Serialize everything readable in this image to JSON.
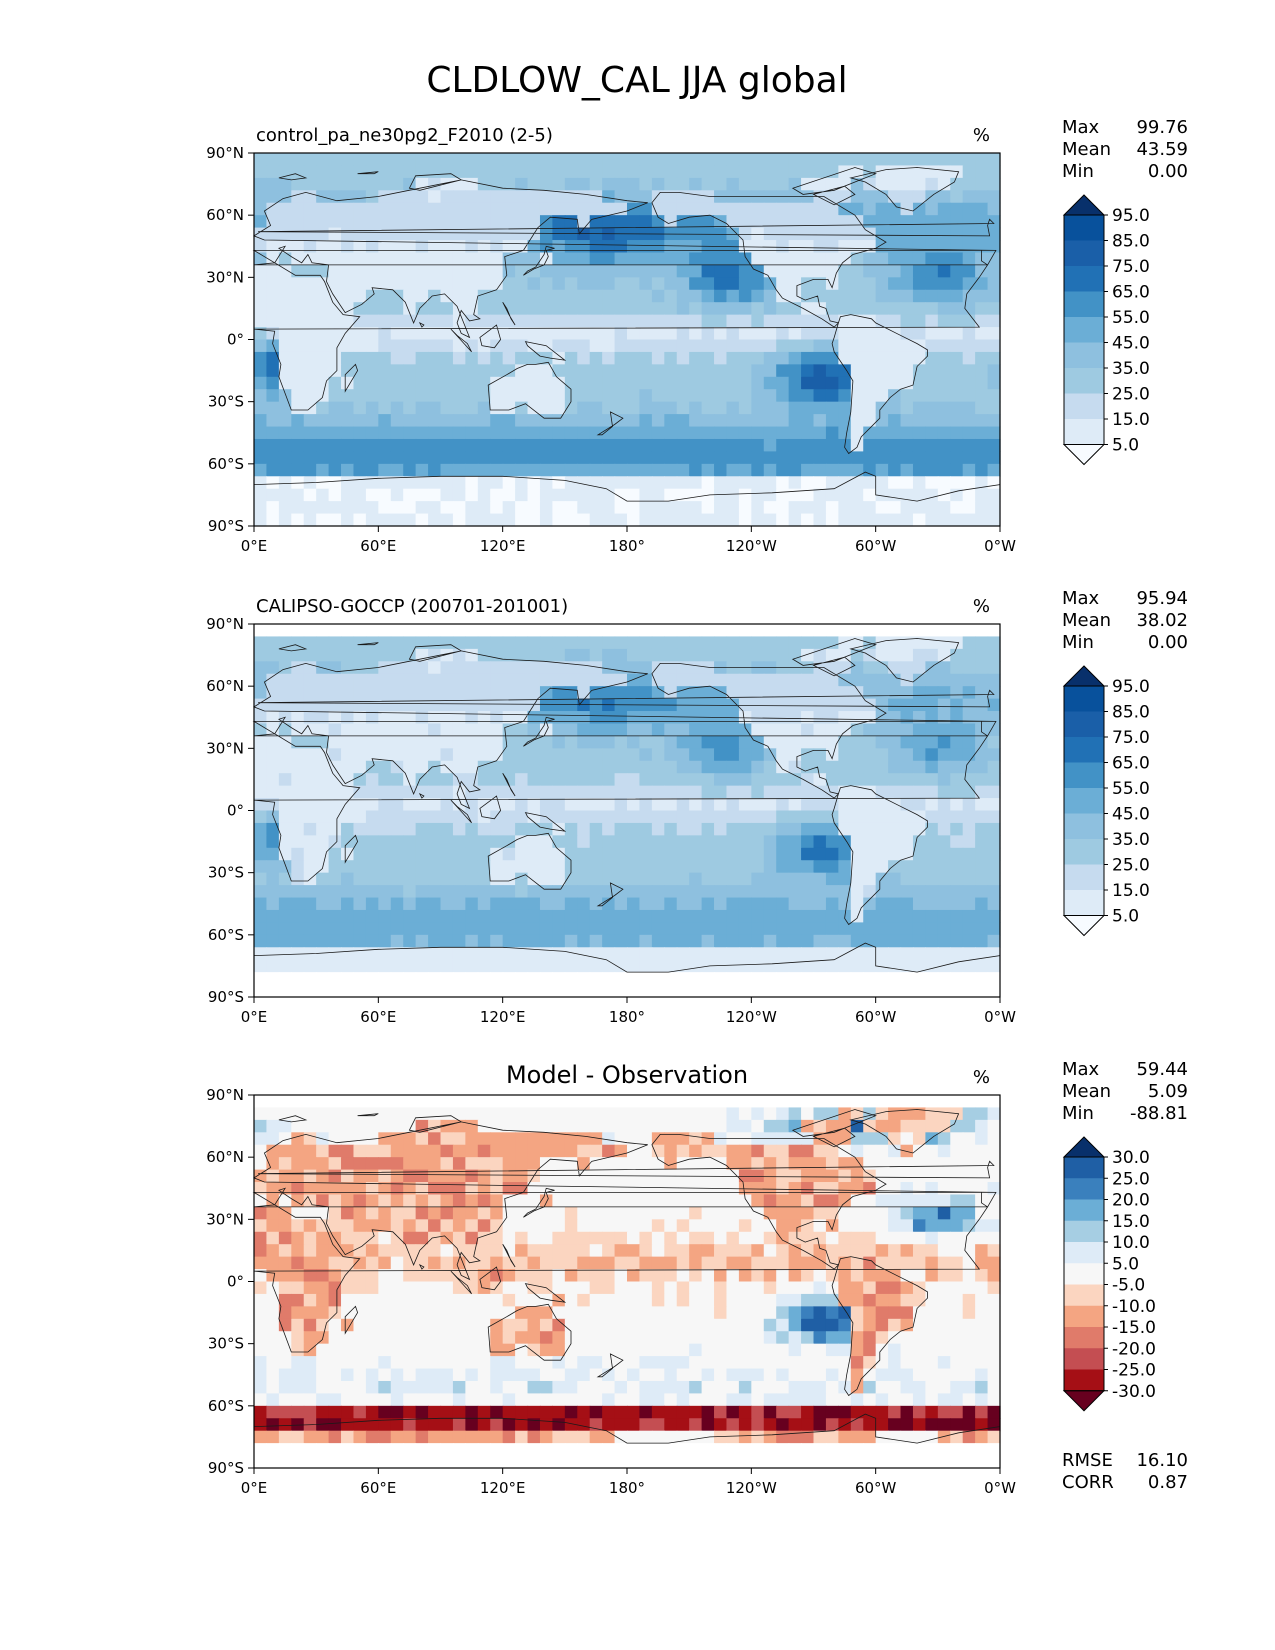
{
  "figure": {
    "title": "CLDLOW_CAL JJA global"
  },
  "colors": {
    "seq_blues": [
      "#f7fbff",
      "#deebf7",
      "#c6dbef",
      "#9ecae1",
      "#8ec0df",
      "#6baed6",
      "#4292c6",
      "#2171b5",
      "#1a5fa8",
      "#08519c",
      "#08306b"
    ],
    "diverging": [
      "#67001f",
      "#a50f15",
      "#c44e52",
      "#e07b6a",
      "#f4a582",
      "#fbd5c0",
      "#f7f7f7",
      "#deebf7",
      "#a6cee3",
      "#6baed6",
      "#3a80bd",
      "#1f5fa5",
      "#08306b"
    ],
    "land_line": "#1a1a1a"
  },
  "axes": {
    "x_ticks": [
      "0°E",
      "60°E",
      "120°E",
      "180°",
      "120°W",
      "60°W",
      "0°W"
    ],
    "y_ticks": [
      "90°N",
      "60°N",
      "30°N",
      "0°",
      "30°S",
      "60°S",
      "90°S"
    ],
    "lon_range": [
      0,
      360
    ],
    "lat_range": [
      -90,
      90
    ]
  },
  "panels": [
    {
      "id": "model",
      "title": "control_pa_ne30pg2_F2010 (2-5)",
      "title_align": "left",
      "units": "%",
      "stats": [
        {
          "label": "Max",
          "value": "99.76"
        },
        {
          "label": "Mean",
          "value": "43.59"
        },
        {
          "label": "Min",
          "value": "0.00"
        }
      ],
      "extra_stats": [],
      "colorbar": {
        "levels": [
          "95.0",
          "85.0",
          "75.0",
          "65.0",
          "55.0",
          "45.0",
          "35.0",
          "25.0",
          "15.0",
          "5.0"
        ],
        "palette": "seq_blues"
      },
      "field_kind": "model",
      "has_polar_mask": false
    },
    {
      "id": "obs",
      "title": "CALIPSO-GOCCP (200701-201001)",
      "title_align": "left",
      "units": "%",
      "stats": [
        {
          "label": "Max",
          "value": "95.94"
        },
        {
          "label": "Mean",
          "value": "38.02"
        },
        {
          "label": "Min",
          "value": "0.00"
        }
      ],
      "extra_stats": [],
      "colorbar": {
        "levels": [
          "95.0",
          "85.0",
          "75.0",
          "65.0",
          "55.0",
          "45.0",
          "35.0",
          "25.0",
          "15.0",
          "5.0"
        ],
        "palette": "seq_blues"
      },
      "field_kind": "obs",
      "has_polar_mask": true
    },
    {
      "id": "diff",
      "title": "Model - Observation",
      "title_align": "center",
      "units": "%",
      "stats": [
        {
          "label": "Max",
          "value": "59.44"
        },
        {
          "label": "Mean",
          "value": "5.09"
        },
        {
          "label": "Min",
          "value": "-88.81"
        }
      ],
      "extra_stats": [
        {
          "label": "RMSE",
          "value": "16.10"
        },
        {
          "label": "CORR",
          "value": "0.87"
        }
      ],
      "colorbar": {
        "levels": [
          "30.0",
          "25.0",
          "20.0",
          "15.0",
          "10.0",
          "5.0",
          "-5.0",
          "-10.0",
          "-15.0",
          "-20.0",
          "-25.0",
          "-30.0"
        ],
        "palette": "diverging"
      },
      "field_kind": "diff",
      "has_polar_mask": true
    }
  ]
}
